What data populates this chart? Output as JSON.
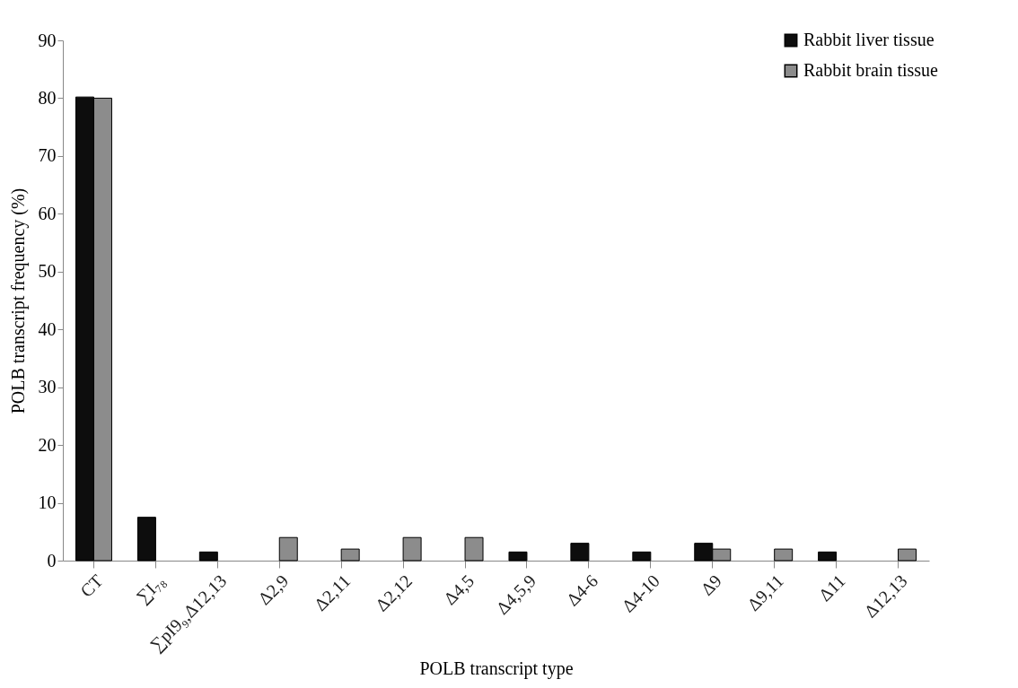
{
  "chart_data": {
    "type": "bar",
    "xlabel": "POLB transcript type",
    "ylabel": "POLB transcript frequency (%)",
    "categories": [
      "CT",
      "∑I₇₈",
      "∑pI9₉,Δ12,13",
      "Δ2,9",
      "Δ2,11",
      "Δ2,12",
      "Δ4,5",
      "Δ4,5,9",
      "Δ4-6",
      "Δ4-10",
      "Δ9",
      "Δ9,11",
      "Δ11",
      "Δ12,13"
    ],
    "series": [
      {
        "name": "Rabbit liver tissue",
        "color": "#0d0d0d",
        "values": [
          80.2,
          7.5,
          1.5,
          null,
          null,
          null,
          null,
          1.5,
          3,
          1.5,
          3,
          null,
          1.5,
          null
        ]
      },
      {
        "name": "Rabbit brain tissue",
        "color": "#8c8c8c",
        "values": [
          80,
          null,
          null,
          4,
          2,
          4,
          4,
          null,
          null,
          null,
          2,
          2,
          null,
          2
        ]
      }
    ],
    "ylim": [
      0,
      90
    ],
    "yticks": [
      0,
      10,
      20,
      30,
      40,
      50,
      60,
      70,
      80,
      90
    ],
    "grid": false,
    "legend": "top right"
  }
}
